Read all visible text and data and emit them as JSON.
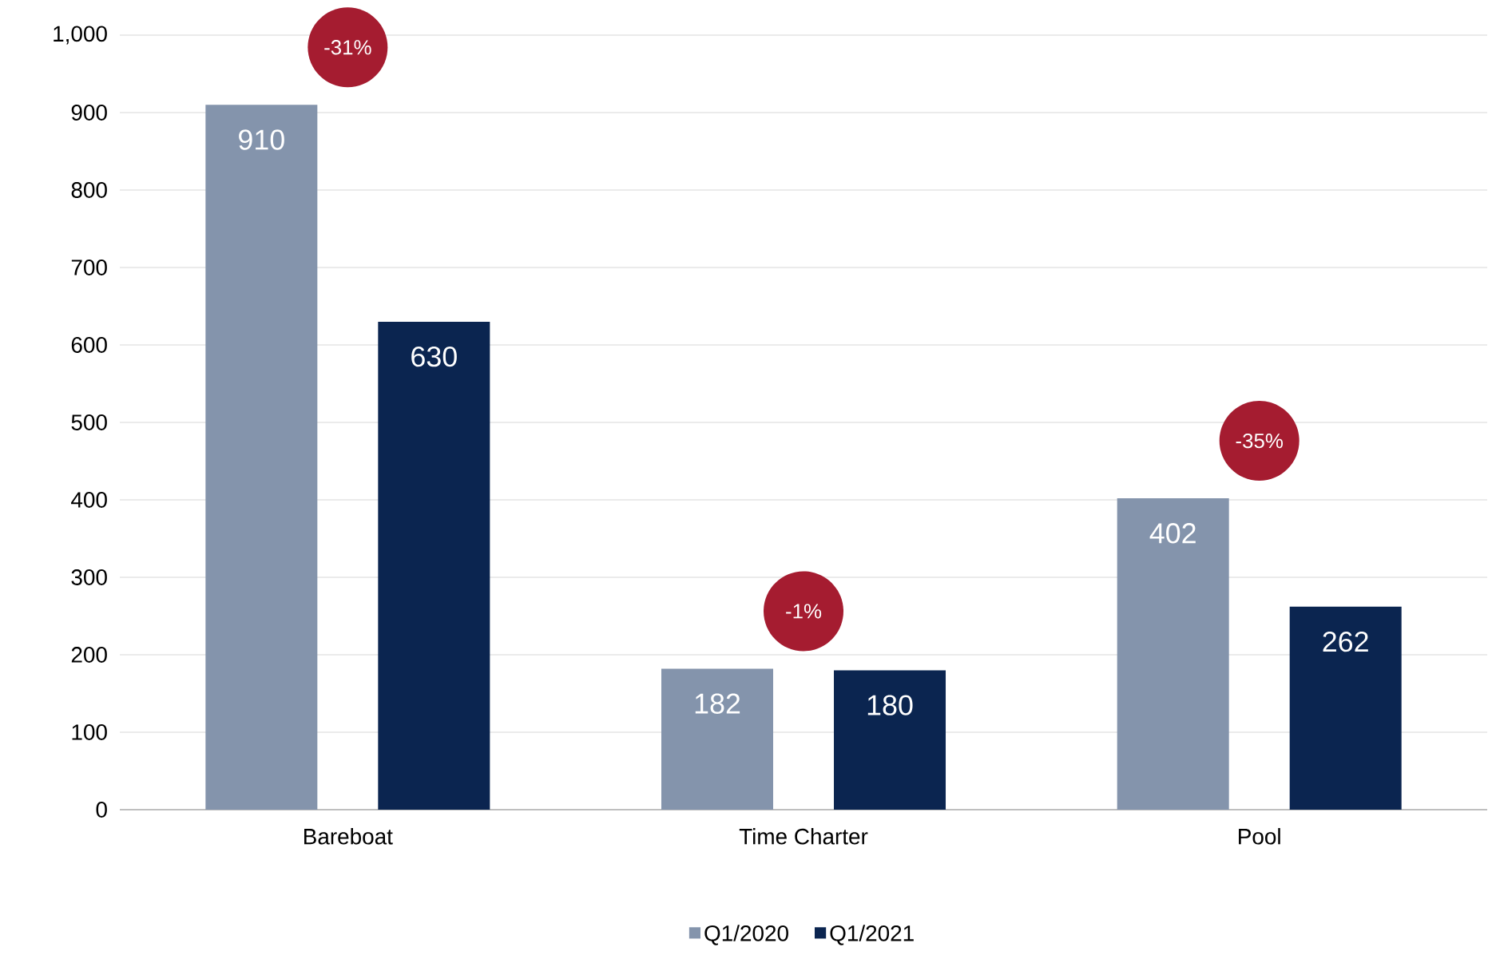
{
  "chart_data": {
    "type": "bar",
    "categories": [
      "Bareboat",
      "Time Charter",
      "Pool"
    ],
    "series": [
      {
        "name": "Q1/2020",
        "color": "#8494ac",
        "values": [
          910,
          182,
          402
        ]
      },
      {
        "name": "Q1/2021",
        "color": "#0b2550",
        "values": [
          630,
          180,
          262
        ]
      }
    ],
    "ylim": [
      0,
      1000
    ],
    "yticks": [
      0,
      100,
      200,
      300,
      400,
      500,
      600,
      700,
      800,
      900,
      {
        "value": 1000,
        "label": "1,000"
      }
    ],
    "grid": "y",
    "legend": "bottom",
    "data_labels": true,
    "annotations": [
      "-31%",
      "-1%",
      "-35%"
    ]
  }
}
